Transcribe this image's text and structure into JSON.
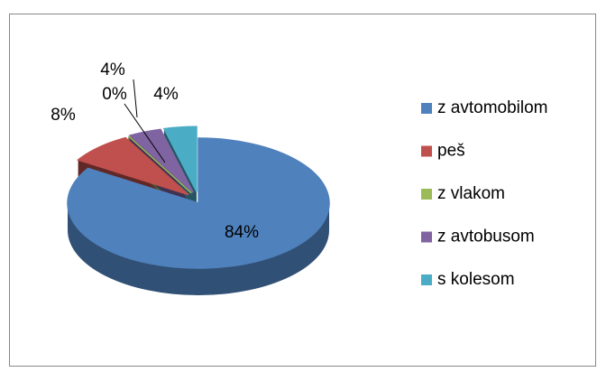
{
  "chart_data": {
    "type": "pie3d",
    "categories": [
      "z avtomobilom",
      "peš",
      "z vlakom",
      "z avtobusom",
      "s kolesom"
    ],
    "values": [
      84,
      8,
      0,
      4,
      4
    ],
    "value_labels": [
      "84%",
      "8%",
      "0%",
      "4%",
      "4%"
    ],
    "colors": [
      "#4f81bd",
      "#c0504d",
      "#9bbb59",
      "#8064a2",
      "#4bacc6"
    ],
    "legend": "right"
  }
}
